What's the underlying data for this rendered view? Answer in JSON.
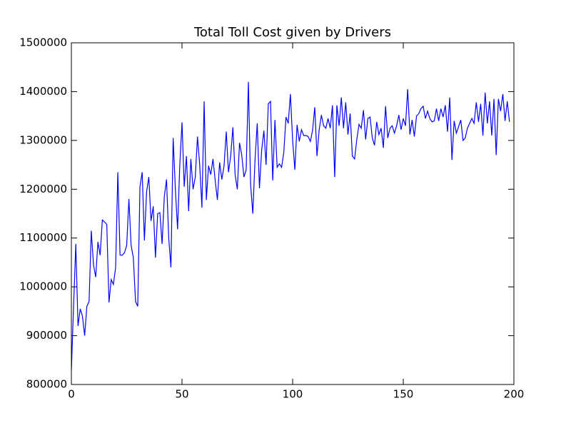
{
  "chart_data": {
    "type": "line",
    "title": "Total Toll Cost given by Drivers",
    "x": [
      0,
      1,
      2,
      3,
      4,
      5,
      6,
      7,
      8,
      9,
      10,
      11,
      12,
      13,
      14,
      15,
      16,
      17,
      18,
      19,
      20,
      21,
      22,
      23,
      24,
      25,
      26,
      27,
      28,
      29,
      30,
      31,
      32,
      33,
      34,
      35,
      36,
      37,
      38,
      39,
      40,
      41,
      42,
      43,
      44,
      45,
      46,
      47,
      48,
      49,
      50,
      51,
      52,
      53,
      54,
      55,
      56,
      57,
      58,
      59,
      60,
      61,
      62,
      63,
      64,
      65,
      66,
      67,
      68,
      69,
      70,
      71,
      72,
      73,
      74,
      75,
      76,
      77,
      78,
      79,
      80,
      81,
      82,
      83,
      84,
      85,
      86,
      87,
      88,
      89,
      90,
      91,
      92,
      93,
      94,
      95,
      96,
      97,
      98,
      99,
      100,
      101,
      102,
      103,
      104,
      105,
      106,
      107,
      108,
      109,
      110,
      111,
      112,
      113,
      114,
      115,
      116,
      117,
      118,
      119,
      120,
      121,
      122,
      123,
      124,
      125,
      126,
      127,
      128,
      129,
      130,
      131,
      132,
      133,
      134,
      135,
      136,
      137,
      138,
      139,
      140,
      141,
      142,
      143,
      144,
      145,
      146,
      147,
      148,
      149,
      150,
      151,
      152,
      153,
      154,
      155,
      156,
      157,
      158,
      159,
      160,
      161,
      162,
      163,
      164,
      165,
      166,
      167,
      168,
      169,
      170,
      171,
      172,
      173,
      174,
      175,
      176,
      177,
      178,
      179,
      180,
      181,
      182,
      183,
      184,
      185,
      186,
      187,
      188,
      189,
      190,
      191,
      192,
      193,
      194,
      195,
      196,
      197,
      198
    ],
    "series": [
      {
        "color": "#0000ff",
        "values": [
          830000,
          960000,
          1088000,
          920000,
          955000,
          940000,
          900000,
          960000,
          970000,
          1115000,
          1045000,
          1020000,
          1092000,
          1065000,
          1137000,
          1133000,
          1128000,
          968000,
          1015000,
          1005000,
          1040000,
          1235000,
          1065000,
          1065000,
          1070000,
          1085000,
          1180000,
          1085000,
          1060000,
          970000,
          960000,
          1205000,
          1235000,
          1095000,
          1195000,
          1225000,
          1135000,
          1165000,
          1060000,
          1150000,
          1152000,
          1088000,
          1185000,
          1220000,
          1100000,
          1040000,
          1305000,
          1200000,
          1118000,
          1250000,
          1337000,
          1205000,
          1268000,
          1155000,
          1262000,
          1200000,
          1225000,
          1308000,
          1250000,
          1162000,
          1380000,
          1178000,
          1248000,
          1230000,
          1262000,
          1218000,
          1178000,
          1255000,
          1220000,
          1248000,
          1318000,
          1235000,
          1268000,
          1327000,
          1230000,
          1200000,
          1295000,
          1270000,
          1225000,
          1240000,
          1420000,
          1210000,
          1150000,
          1260000,
          1335000,
          1202000,
          1280000,
          1320000,
          1250000,
          1375000,
          1380000,
          1218000,
          1342000,
          1245000,
          1252000,
          1245000,
          1275000,
          1348000,
          1335000,
          1395000,
          1300000,
          1240000,
          1332000,
          1298000,
          1322000,
          1310000,
          1310000,
          1308000,
          1298000,
          1320000,
          1368000,
          1268000,
          1322000,
          1352000,
          1330000,
          1325000,
          1345000,
          1325000,
          1372000,
          1225000,
          1372000,
          1330000,
          1388000,
          1325000,
          1378000,
          1312000,
          1355000,
          1268000,
          1262000,
          1302000,
          1333000,
          1325000,
          1362000,
          1302000,
          1345000,
          1348000,
          1305000,
          1290000,
          1338000,
          1312000,
          1325000,
          1285000,
          1370000,
          1305000,
          1325000,
          1330000,
          1315000,
          1330000,
          1352000,
          1322000,
          1345000,
          1330000,
          1405000,
          1312000,
          1342000,
          1308000,
          1350000,
          1355000,
          1365000,
          1370000,
          1345000,
          1360000,
          1345000,
          1338000,
          1340000,
          1365000,
          1340000,
          1365000,
          1348000,
          1372000,
          1318000,
          1388000,
          1260000,
          1340000,
          1315000,
          1328000,
          1342000,
          1300000,
          1305000,
          1325000,
          1335000,
          1345000,
          1335000,
          1378000,
          1338000,
          1375000,
          1310000,
          1398000,
          1335000,
          1380000,
          1310000,
          1385000,
          1270000,
          1385000,
          1360000,
          1395000,
          1340000,
          1380000,
          1338000
        ]
      }
    ],
    "xlim": [
      0,
      200
    ],
    "xticks": [
      0,
      50,
      100,
      150,
      200
    ],
    "ylim": [
      800000,
      1500000
    ],
    "yticks": [
      800000,
      900000,
      1000000,
      1100000,
      1200000,
      1300000,
      1400000,
      1500000
    ],
    "grid": false
  }
}
